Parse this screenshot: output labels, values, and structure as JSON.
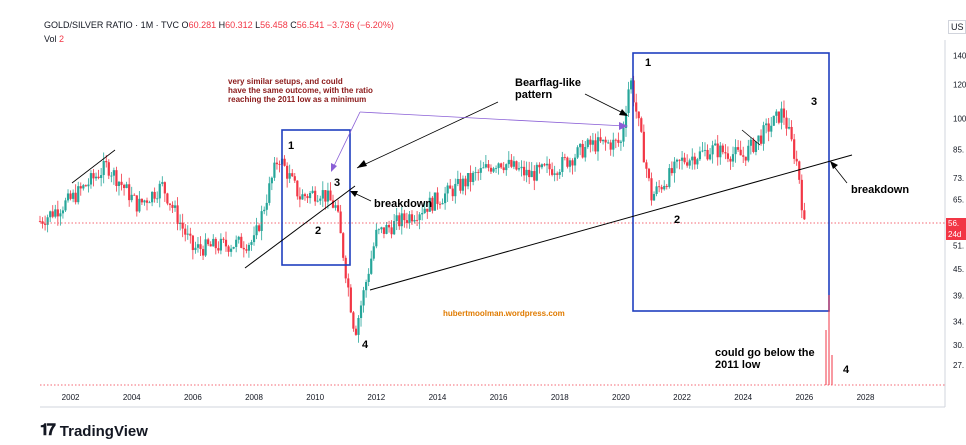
{
  "header": {
    "symbol": "GOLD/SILVER RATIO · 1M · TVC",
    "open_label": "O",
    "open": "60.281",
    "high_label": "H",
    "high": "60.312",
    "low_label": "L",
    "low": "56.458",
    "close_label": "C",
    "close": "56.541",
    "change": "−3.736 (−6.20%)",
    "vol_label": "Vol",
    "vol_value": "2"
  },
  "currency_button": "US",
  "branding": "TradingView",
  "colors": {
    "up": "#26a69a",
    "down": "#f23645",
    "annotation_box": "#1f3fbf",
    "text_dark": "#131722"
  },
  "chart_data": {
    "type": "candlestick",
    "x_axis": {
      "tick_labels": [
        "2002",
        "2004",
        "2006",
        "2008",
        "2010",
        "2012",
        "2014",
        "2016",
        "2018",
        "2020",
        "2022",
        "2024",
        "2026",
        "2028"
      ],
      "range": [
        2001.0,
        2030.6
      ]
    },
    "y_axis": {
      "scale": "log",
      "tick_labels": [
        "140",
        "120",
        "100",
        "85.",
        "73.",
        "65.",
        "56.",
        "51.",
        "45.",
        "39.",
        "34.",
        "30.",
        "27."
      ],
      "range": [
        24,
        152
      ]
    },
    "last_price": {
      "value": 56.541,
      "label": "56.",
      "sublabel": "24d"
    },
    "approx_path": [
      {
        "date": 2001.0,
        "value": 58
      },
      {
        "date": 2002.0,
        "value": 65
      },
      {
        "date": 2003.2,
        "value": 78
      },
      {
        "date": 2004.2,
        "value": 63
      },
      {
        "date": 2005.0,
        "value": 70
      },
      {
        "date": 2006.0,
        "value": 50
      },
      {
        "date": 2007.0,
        "value": 51
      },
      {
        "date": 2008.0,
        "value": 52
      },
      {
        "date": 2008.8,
        "value": 82
      },
      {
        "date": 2009.5,
        "value": 66
      },
      {
        "date": 2010.2,
        "value": 68
      },
      {
        "date": 2010.7,
        "value": 62
      },
      {
        "date": 2011.3,
        "value": 32
      },
      {
        "date": 2012.0,
        "value": 54
      },
      {
        "date": 2013.5,
        "value": 62
      },
      {
        "date": 2015.0,
        "value": 72
      },
      {
        "date": 2016.0,
        "value": 80
      },
      {
        "date": 2017.0,
        "value": 74
      },
      {
        "date": 2018.0,
        "value": 78
      },
      {
        "date": 2019.0,
        "value": 87
      },
      {
        "date": 2020.0,
        "value": 88
      },
      {
        "date": 2020.3,
        "value": 125
      },
      {
        "date": 2021.0,
        "value": 66
      },
      {
        "date": 2022.0,
        "value": 80
      },
      {
        "date": 2023.0,
        "value": 85
      },
      {
        "date": 2024.0,
        "value": 82
      },
      {
        "date": 2025.3,
        "value": 104
      },
      {
        "date": 2025.8,
        "value": 77
      },
      {
        "date": 2026.0,
        "value": 56.5
      }
    ]
  },
  "annotations": {
    "setups_note_1": "very similar setups, and could",
    "setups_note_2": "have the same outcome, with the ratio",
    "setups_note_3": "reaching the 2011 low as a minimum",
    "bearflag_1": "Bearflag-like",
    "bearflag_2": "pattern",
    "breakdown_left": "breakdown",
    "breakdown_right": "breakdown",
    "below_low_1": "could go below the",
    "below_low_2": "2011 low",
    "website": "hubertmoolman.wordpress.com",
    "left_labels": [
      "1",
      "2",
      "3",
      "4"
    ],
    "right_labels": [
      "1",
      "2",
      "3",
      "4"
    ]
  }
}
